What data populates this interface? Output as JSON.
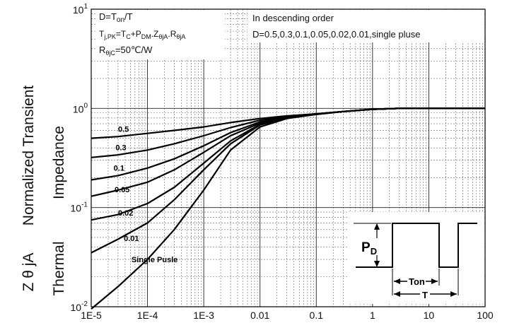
{
  "chart_data": {
    "type": "line",
    "title": "",
    "xlabel": "",
    "ylabel": {
      "line1": "Normalized Transient",
      "line2_a": "Thermal",
      "line2_b": "Impedance",
      "prefix": "Z θ jA"
    },
    "x_scale": "log",
    "y_scale": "log",
    "xlim": [
      1e-05,
      100
    ],
    "ylim": [
      0.01,
      10
    ],
    "grid": true,
    "x_tick_labels": [
      "1E-5",
      "1E-4",
      "1E-3",
      "0.01",
      "0.1",
      "1",
      "10",
      "100"
    ],
    "x_tick_values": [
      1e-05,
      0.0001,
      0.001,
      0.01,
      0.1,
      1,
      10,
      100
    ],
    "y_tick_labels": [
      {
        "base": "10",
        "exp": "-2",
        "value": 0.01
      },
      {
        "base": "10",
        "exp": "-1",
        "value": 0.1
      },
      {
        "base": "10",
        "exp": "0",
        "value": 1
      },
      {
        "base": "10",
        "exp": "1",
        "value": 10
      }
    ],
    "annotations": {
      "left_box": [
        "D=Ton/T",
        "Tj,PK=TC+PDM.ZθjA.RθjA",
        "RθjC=50℃/W"
      ],
      "right_box": [
        "In descending order",
        "D=0.5,0.3,0.1,0.05,0.02,0.01,single pluse"
      ],
      "pulse_labels": {
        "pd": "PD",
        "ton": "Ton",
        "t": "T"
      }
    },
    "series": [
      {
        "name": "0.5",
        "x": [
          1e-05,
          3e-05,
          0.0001,
          0.0003,
          0.001,
          0.003,
          0.01,
          0.03,
          0.1,
          0.3,
          1,
          3,
          10,
          100
        ],
        "y": [
          0.5,
          0.52,
          0.56,
          0.6,
          0.65,
          0.72,
          0.79,
          0.84,
          0.88,
          0.93,
          0.98,
          1.0,
          1.0,
          1.0
        ]
      },
      {
        "name": "0.3",
        "x": [
          1e-05,
          3e-05,
          0.0001,
          0.0003,
          0.001,
          0.003,
          0.01,
          0.03,
          0.1,
          0.3,
          1,
          3,
          10,
          100
        ],
        "y": [
          0.32,
          0.34,
          0.38,
          0.44,
          0.53,
          0.64,
          0.76,
          0.83,
          0.88,
          0.93,
          0.98,
          1.0,
          1.0,
          1.0
        ]
      },
      {
        "name": "0.1",
        "x": [
          1e-05,
          3e-05,
          0.0001,
          0.0003,
          0.001,
          0.003,
          0.01,
          0.03,
          0.1,
          0.3,
          1,
          3,
          10,
          100
        ],
        "y": [
          0.19,
          0.21,
          0.25,
          0.31,
          0.42,
          0.57,
          0.73,
          0.82,
          0.88,
          0.93,
          0.98,
          1.0,
          1.0,
          1.0
        ]
      },
      {
        "name": "0.05",
        "x": [
          1e-05,
          3e-05,
          0.0001,
          0.0003,
          0.001,
          0.003,
          0.01,
          0.03,
          0.1,
          0.3,
          1,
          3,
          10,
          100
        ],
        "y": [
          0.13,
          0.15,
          0.18,
          0.24,
          0.36,
          0.53,
          0.71,
          0.81,
          0.88,
          0.93,
          0.98,
          1.0,
          1.0,
          1.0
        ]
      },
      {
        "name": "0.02",
        "x": [
          1e-05,
          3e-05,
          0.0001,
          0.0003,
          0.001,
          0.003,
          0.01,
          0.03,
          0.1,
          0.3,
          1,
          3,
          10,
          100
        ],
        "y": [
          0.075,
          0.085,
          0.11,
          0.16,
          0.28,
          0.47,
          0.69,
          0.8,
          0.87,
          0.93,
          0.98,
          1.0,
          1.0,
          1.0
        ]
      },
      {
        "name": "0.01",
        "x": [
          1e-05,
          3e-05,
          0.0001,
          0.0003,
          0.001,
          0.003,
          0.01,
          0.03,
          0.1,
          0.3,
          1,
          3,
          10,
          100
        ],
        "y": [
          0.035,
          0.048,
          0.07,
          0.12,
          0.24,
          0.44,
          0.68,
          0.8,
          0.87,
          0.93,
          0.98,
          1.0,
          1.0,
          1.0
        ]
      },
      {
        "name": "Single Pusle",
        "x": [
          1e-05,
          3e-05,
          0.0001,
          0.0003,
          0.001,
          0.003,
          0.01,
          0.03,
          0.1,
          0.3,
          1,
          3,
          10,
          100
        ],
        "y": [
          0.0095,
          0.016,
          0.03,
          0.06,
          0.15,
          0.38,
          0.65,
          0.79,
          0.87,
          0.93,
          0.98,
          1.0,
          1.0,
          1.0
        ]
      }
    ],
    "series_label_at": [
      {
        "x": 3e-05,
        "y": 0.58
      },
      {
        "x": 2.7e-05,
        "y": 0.38
      },
      {
        "x": 2.5e-05,
        "y": 0.235
      },
      {
        "x": 2.6e-05,
        "y": 0.143
      },
      {
        "x": 3e-05,
        "y": 0.083
      },
      {
        "x": 3.8e-05,
        "y": 0.046
      },
      {
        "x": 5.2e-05,
        "y": 0.028
      }
    ]
  }
}
